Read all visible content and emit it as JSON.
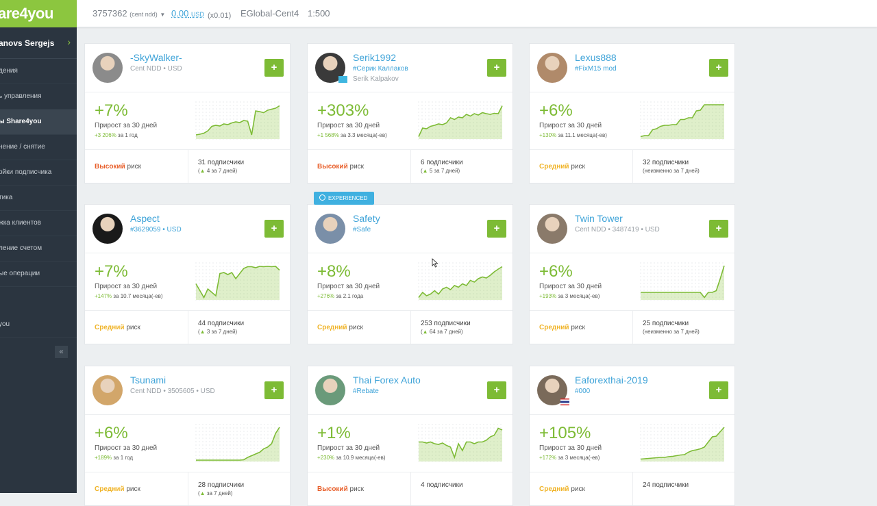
{
  "app": {
    "logo": "are4you",
    "user_name": "anovs Sergejs",
    "nav": [
      {
        "label": "дения",
        "active": false
      },
      {
        "label": "ь управления",
        "active": false
      },
      {
        "label": "ы Share4you",
        "active": true
      },
      {
        "label": "нение / снятие",
        "active": false
      },
      {
        "label": "ойки подписчика",
        "active": false
      },
      {
        "label": "тика",
        "active": false
      },
      {
        "label": "жка клиентов",
        "active": false
      },
      {
        "label": "ление счетом",
        "active": false
      },
      {
        "label": "ые операции",
        "active": false
      },
      {
        "label": "you",
        "active": false
      }
    ],
    "collapse": "«"
  },
  "topbar": {
    "account": "3757362",
    "account_type": "(cent ndd)",
    "balance": "0.00",
    "currency": "USD",
    "multiplier": "(x0.01)",
    "server": "EGlobal-Cent4",
    "leverage": "1:500"
  },
  "cards": [
    {
      "name": "-SkyWalker-",
      "sub": "Cent NDD • USD",
      "sub_is_tag": false,
      "sub2": "",
      "pct": "+7%",
      "label": "Прирост за 30 дней",
      "total_val": "+3 206%",
      "total_period": "за 1 год",
      "risk_level": "Высокий",
      "risk_word": "риск",
      "risk_color": "#e8602c",
      "subs": "31 подписчики",
      "subs_arrow": "▲",
      "subs_val": "4",
      "subs_period": "за 7 дней)",
      "subs_text": "",
      "avatar_color": "#8b8b8b",
      "flag": "",
      "spark": [
        0.1,
        0.12,
        0.15,
        0.22,
        0.35,
        0.38,
        0.36,
        0.42,
        0.4,
        0.45,
        0.48,
        0.46,
        0.52,
        0.5,
        0.1,
        0.8,
        0.78,
        0.75,
        0.82,
        0.85,
        0.88,
        0.95
      ]
    },
    {
      "name": "Serik1992",
      "sub": "#Серик Каллаков",
      "sub_is_tag": true,
      "sub2": "Serik Kalpakov",
      "pct": "+303%",
      "label": "Прирост за 30 дней",
      "total_val": "+1 568%",
      "total_period": "за 3.3 месяца(-ев)",
      "risk_level": "Высокий",
      "risk_word": "риск",
      "risk_color": "#e8602c",
      "subs": "6 подписчики",
      "subs_arrow": "▲",
      "subs_val": "5",
      "subs_period": "за 7 дней)",
      "subs_text": "",
      "avatar_color": "#3a3a3a",
      "flag": "kz",
      "spark": [
        0.05,
        0.3,
        0.28,
        0.35,
        0.38,
        0.42,
        0.4,
        0.45,
        0.6,
        0.55,
        0.62,
        0.6,
        0.7,
        0.65,
        0.72,
        0.68,
        0.75,
        0.72,
        0.7,
        0.73,
        0.72,
        0.95
      ]
    },
    {
      "name": "Lexus888",
      "sub": "#FixM15 mod",
      "sub_is_tag": true,
      "sub2": "",
      "pct": "+6%",
      "label": "Прирост за 30 дней",
      "total_val": "+130%",
      "total_period": "за 11.1 месяца(-ев)",
      "risk_level": "Средний",
      "risk_word": "риск",
      "risk_color": "#f0b429",
      "subs": "32 подписчики",
      "subs_arrow": "",
      "subs_val": "",
      "subs_period": "",
      "subs_text": "неизменно за 7 дней)",
      "avatar_color": "#b08a6a",
      "flag": "",
      "spark": [
        0.05,
        0.08,
        0.08,
        0.25,
        0.28,
        0.35,
        0.38,
        0.38,
        0.4,
        0.4,
        0.55,
        0.55,
        0.6,
        0.6,
        0.8,
        0.82,
        0.98,
        0.98,
        0.98,
        0.98,
        0.98,
        0.98
      ]
    },
    {
      "name": "Aspect",
      "sub": "#3629059 • USD",
      "sub_is_tag": true,
      "sub2": "",
      "pct": "+7%",
      "label": "Прирост за 30 дней",
      "total_val": "+147%",
      "total_period": "за 10.7 месяца(-ев)",
      "risk_level": "Средний",
      "risk_word": "риск",
      "risk_color": "#f0b429",
      "subs": "44 подписчики",
      "subs_arrow": "▲",
      "subs_val": "3",
      "subs_period": "за 7 дней)",
      "subs_text": "",
      "avatar_color": "#1a1a1a",
      "flag": "",
      "spark": [
        0.45,
        0.25,
        0.05,
        0.3,
        0.2,
        0.1,
        0.75,
        0.78,
        0.72,
        0.78,
        0.6,
        0.75,
        0.9,
        0.95,
        0.95,
        0.92,
        0.96,
        0.95,
        0.96,
        0.95,
        0.96,
        0.85
      ]
    },
    {
      "name": "Safety",
      "sub": "#Safe",
      "sub_is_tag": true,
      "sub2": "",
      "pct": "+8%",
      "label": "Прирост за 30 дней",
      "total_val": "+276%",
      "total_period": "за 2.1 года",
      "risk_level": "Средний",
      "risk_word": "риск",
      "risk_color": "#f0b429",
      "subs": "253 подписчики",
      "subs_arrow": "▲",
      "subs_val": "64",
      "subs_period": "за 7 дней)",
      "subs_text": "",
      "avatar_color": "#7a8fa8",
      "flag": "",
      "spark": [
        0.05,
        0.2,
        0.1,
        0.15,
        0.25,
        0.15,
        0.3,
        0.35,
        0.28,
        0.4,
        0.35,
        0.45,
        0.4,
        0.55,
        0.5,
        0.6,
        0.65,
        0.62,
        0.7,
        0.8,
        0.88,
        0.95
      ]
    },
    {
      "name": "Twin Tower",
      "sub": "Cent NDD • 3487419 • USD",
      "sub_is_tag": false,
      "sub2": "",
      "pct": "+6%",
      "label": "Прирост за 30 дней",
      "total_val": "+193%",
      "total_period": "за 3 месяца(-ев)",
      "risk_level": "Средний",
      "risk_word": "риск",
      "risk_color": "#f0b429",
      "subs": "25 подписчики",
      "subs_arrow": "",
      "subs_val": "",
      "subs_period": "",
      "subs_text": "неизменно за 7 дней)",
      "avatar_color": "#8a7a6a",
      "flag": "",
      "spark": [
        0.2,
        0.2,
        0.2,
        0.2,
        0.2,
        0.2,
        0.2,
        0.2,
        0.2,
        0.2,
        0.2,
        0.2,
        0.2,
        0.2,
        0.2,
        0.2,
        0.05,
        0.2,
        0.2,
        0.25,
        0.6,
        0.98
      ]
    },
    {
      "name": "Tsunami",
      "sub": "Cent NDD • 3505605 • USD",
      "sub_is_tag": false,
      "sub2": "",
      "pct": "+6%",
      "label": "Прирост за 30 дней",
      "total_val": "+189%",
      "total_period": "за 1 год",
      "risk_level": "Средний",
      "risk_word": "риск",
      "risk_color": "#f0b429",
      "subs": "28 подписчики",
      "subs_arrow": "▲",
      "subs_val": "",
      "subs_period": "за 7 дней)",
      "subs_text": "",
      "avatar_color": "#d2a66a",
      "flag": "",
      "spark": [
        0.02,
        0.02,
        0.02,
        0.02,
        0.02,
        0.02,
        0.02,
        0.02,
        0.02,
        0.02,
        0.02,
        0.02,
        0.03,
        0.1,
        0.15,
        0.2,
        0.25,
        0.35,
        0.4,
        0.5,
        0.8,
        0.98
      ]
    },
    {
      "name": "Thai Forex Auto",
      "sub": "#Rebate",
      "sub_is_tag": true,
      "sub2": "",
      "pct": "+1%",
      "label": "Прирост за 30 дней",
      "total_val": "+230%",
      "total_period": "за 10.9 месяца(-ев)",
      "risk_level": "Высокий",
      "risk_word": "риск",
      "risk_color": "#e8602c",
      "subs": "4 подписчики",
      "subs_arrow": "",
      "subs_val": "",
      "subs_period": "",
      "subs_text": "",
      "avatar_color": "#6a9a7a",
      "flag": "",
      "spark": [
        0.55,
        0.55,
        0.52,
        0.55,
        0.5,
        0.48,
        0.52,
        0.45,
        0.4,
        0.1,
        0.5,
        0.3,
        0.55,
        0.55,
        0.5,
        0.55,
        0.55,
        0.6,
        0.7,
        0.75,
        0.95,
        0.9
      ]
    },
    {
      "name": "Eaforexthai-2019",
      "sub": "#000",
      "sub_is_tag": true,
      "sub2": "",
      "pct": "+105%",
      "label": "Прирост за 30 дней",
      "total_val": "+172%",
      "total_period": "за 3 месяца(-ев)",
      "risk_level": "Средний",
      "risk_word": "риск",
      "risk_color": "#f0b429",
      "subs": "24 подписчики",
      "subs_arrow": "",
      "subs_val": "",
      "subs_period": "",
      "subs_text": "",
      "avatar_color": "#7a6a5a",
      "flag": "th",
      "spark": [
        0.05,
        0.06,
        0.07,
        0.08,
        0.09,
        0.1,
        0.1,
        0.12,
        0.13,
        0.15,
        0.17,
        0.18,
        0.25,
        0.3,
        0.32,
        0.35,
        0.4,
        0.55,
        0.7,
        0.72,
        0.85,
        0.98
      ]
    }
  ],
  "badge": {
    "text": "EXPERIENCED"
  },
  "colors": {
    "accent_green": "#7dbb35",
    "link_blue": "#3ea3d8",
    "badge_blue": "#3fb0e0",
    "sidebar": "#2b3540",
    "high_risk": "#e8602c",
    "medium_risk": "#f0b429"
  }
}
